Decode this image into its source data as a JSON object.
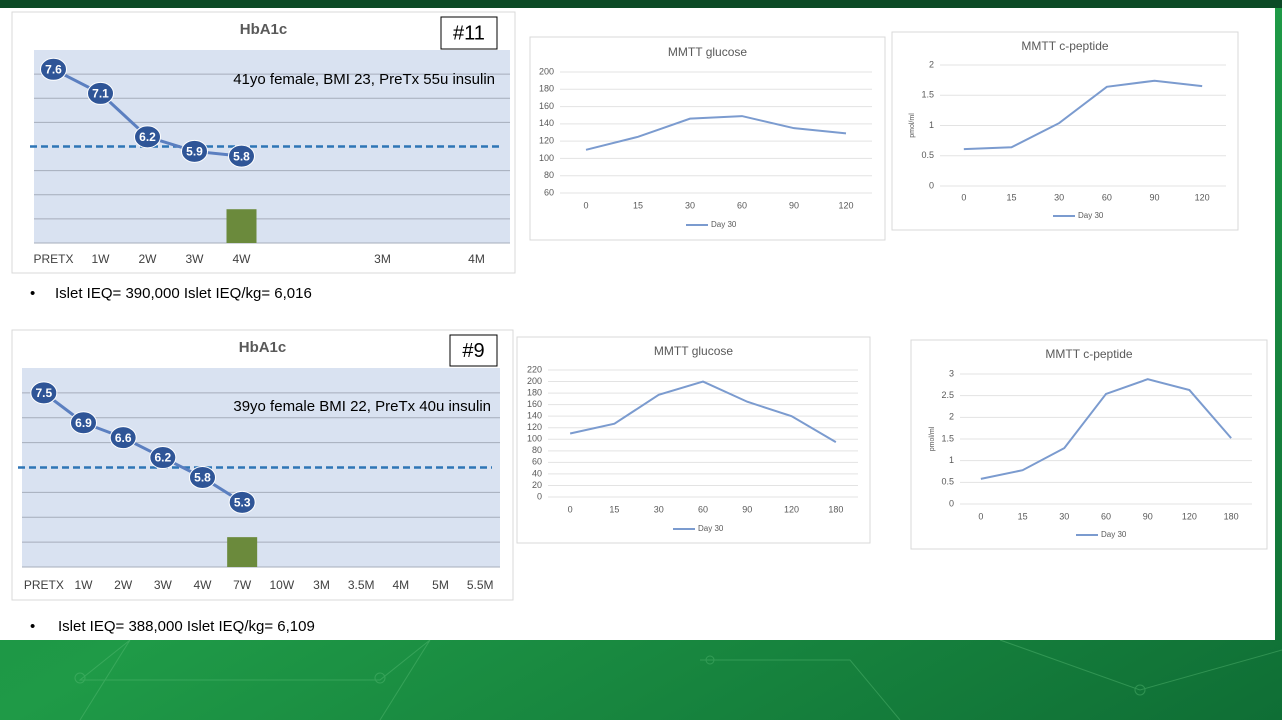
{
  "chart_data": [
    {
      "type": "line",
      "title": "HbA1c",
      "badge": "#11",
      "note": "41yo female, BMI 23, PreTx 55u insulin",
      "categories": [
        "PRETX",
        "1W",
        "2W",
        "3W",
        "4W",
        null,
        null,
        "3M",
        null,
        "4M"
      ],
      "values": [
        7.6,
        7.1,
        6.2,
        5.9,
        5.8,
        null,
        null,
        null,
        null,
        null
      ],
      "bar_values": [
        null,
        null,
        null,
        null,
        4.7,
        null,
        null,
        null,
        null,
        null
      ],
      "color": "#2f5597",
      "bar_color": "#6b8a3c",
      "threshold": 6,
      "threshold_color": "#2e75b6",
      "ylim": [
        4,
        8
      ],
      "gridlines": [
        4,
        4.5,
        5,
        5.5,
        6.5,
        7,
        7.5
      ],
      "markers": "labeled-circle"
    },
    {
      "type": "line",
      "title": "MMTT glucose",
      "categories": [
        "0",
        "15",
        "30",
        "60",
        "90",
        "120"
      ],
      "series": [
        {
          "name": "Day 30",
          "color": "#7b9bcf",
          "values": [
            110,
            125,
            146,
            149,
            135,
            129
          ]
        }
      ],
      "ylim": [
        60,
        200
      ],
      "yticks": [
        60,
        80,
        100,
        120,
        140,
        160,
        180,
        200
      ],
      "grid": true,
      "legend": "bottom"
    },
    {
      "type": "line",
      "title": "MMTT c-peptide",
      "ylabel": "pmol/ml",
      "categories": [
        "0",
        "15",
        "30",
        "60",
        "90",
        "120"
      ],
      "series": [
        {
          "name": "Day 30",
          "color": "#7b9bcf",
          "values": [
            0.61,
            0.64,
            1.04,
            1.64,
            1.74,
            1.65
          ]
        }
      ],
      "ylim": [
        0,
        2
      ],
      "yticks": [
        0,
        0.5,
        1,
        1.5,
        2
      ],
      "grid": true,
      "legend": "bottom"
    },
    {
      "type": "line",
      "title": "HbA1c",
      "badge": "#9",
      "note": "39yo female BMI 22, PreTx 40u insulin",
      "categories": [
        "PRETX",
        "1W",
        "2W",
        "3W",
        "4W",
        "7W",
        "10W",
        "3M",
        "3.5M",
        "4M",
        "5M",
        "5.5M"
      ],
      "values": [
        7.5,
        6.9,
        6.6,
        6.2,
        5.8,
        5.3,
        null,
        null,
        null,
        null,
        null,
        null
      ],
      "bar_values": [
        null,
        null,
        null,
        null,
        null,
        4.6,
        null,
        null,
        null,
        null,
        null,
        null
      ],
      "color": "#2f5597",
      "bar_color": "#6b8a3c",
      "threshold": 6,
      "threshold_color": "#2e75b6",
      "ylim": [
        4,
        8
      ],
      "gridlines": [
        4,
        4.5,
        5,
        5.5,
        6.5,
        7,
        7.5
      ],
      "markers": "labeled-circle"
    },
    {
      "type": "line",
      "title": "MMTT glucose",
      "categories": [
        "0",
        "15",
        "30",
        "60",
        "90",
        "120",
        "180"
      ],
      "series": [
        {
          "name": "Day 30",
          "color": "#7b9bcf",
          "values": [
            110,
            127,
            177,
            200,
            165,
            140,
            95
          ]
        }
      ],
      "ylim": [
        0,
        220
      ],
      "yticks": [
        0,
        20,
        40,
        60,
        80,
        100,
        120,
        140,
        160,
        180,
        200,
        220
      ],
      "grid": true,
      "legend": "bottom"
    },
    {
      "type": "line",
      "title": "MMTT c-peptide",
      "ylabel": "pmol/ml",
      "categories": [
        "0",
        "15",
        "30",
        "60",
        "90",
        "120",
        "180"
      ],
      "series": [
        {
          "name": "Day 30",
          "color": "#7b9bcf",
          "values": [
            0.58,
            0.78,
            1.29,
            2.54,
            2.88,
            2.63,
            1.52
          ]
        }
      ],
      "ylim": [
        0,
        3
      ],
      "yticks": [
        0,
        0.5,
        1,
        1.5,
        2,
        2.5,
        3
      ],
      "grid": true,
      "legend": "bottom"
    }
  ],
  "bullets": [
    "Islet IEQ= 390,000  Islet IEQ/kg= 6,016",
    "Islet IEQ= 388,000   Islet IEQ/kg= 6,109"
  ]
}
